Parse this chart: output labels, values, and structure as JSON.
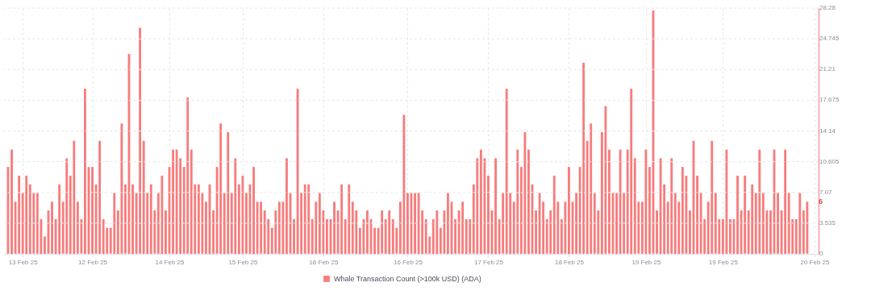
{
  "chart_data": {
    "type": "bar",
    "x": [
      "--02-11T00:00",
      "--02-11T01:00",
      "--02-11T02:00",
      "--02-11T03:00",
      "--02-11T04:00",
      "--02-11T05:00",
      "--02-11T06:00",
      "--02-11T07:00",
      "--02-11T08:00",
      "--02-11T09:00",
      "--02-11T10:00",
      "--02-11T11:00",
      "--02-11T12:00",
      "--02-11T13:00",
      "--02-11T14:00",
      "--02-11T15:00",
      "--02-11T16:00",
      "--02-11T17:00",
      "--02-11T18:00",
      "--02-11T19:00",
      "--02-11T20:00",
      "--02-11T21:00",
      "--02-11T22:00",
      "--02-11T23:00",
      "--02-12T00:00",
      "--02-12T01:00",
      "--02-12T02:00",
      "--02-12T03:00",
      "--02-12T04:00",
      "--02-12T05:00",
      "--02-12T06:00",
      "--02-12T07:00",
      "--02-12T08:00",
      "--02-12T09:00",
      "--02-12T10:00",
      "--02-12T11:00",
      "--02-12T12:00",
      "--02-12T13:00",
      "--02-12T14:00",
      "--02-12T15:00",
      "--02-12T16:00",
      "--02-12T17:00",
      "--02-12T18:00",
      "--02-12T19:00",
      "--02-12T20:00",
      "--02-12T21:00",
      "--02-12T22:00",
      "--02-12T23:00",
      "--02-13T00:00",
      "--02-13T01:00",
      "--02-13T02:00",
      "--02-13T03:00",
      "--02-13T04:00",
      "--02-13T05:00",
      "--02-13T06:00",
      "--02-13T07:00",
      "--02-13T08:00",
      "--02-13T09:00",
      "--02-13T10:00",
      "--02-13T11:00",
      "--02-13T12:00",
      "--02-13T13:00",
      "--02-13T14:00",
      "--02-13T15:00",
      "--02-13T16:00",
      "--02-13T17:00",
      "--02-13T18:00",
      "--02-13T19:00",
      "--02-13T20:00",
      "--02-13T21:00",
      "--02-13T22:00",
      "--02-13T23:00",
      "--02-14T00:00",
      "--02-14T01:00",
      "--02-14T02:00",
      "--02-14T03:00",
      "--02-14T04:00",
      "--02-14T05:00",
      "--02-14T06:00",
      "--02-14T07:00",
      "--02-14T08:00",
      "--02-14T09:00",
      "--02-14T10:00",
      "--02-14T11:00",
      "--02-14T12:00",
      "--02-14T13:00",
      "--02-14T14:00",
      "--02-14T15:00",
      "--02-14T16:00",
      "--02-14T17:00",
      "--02-14T18:00",
      "--02-14T19:00",
      "--02-14T20:00",
      "--02-14T21:00",
      "--02-14T22:00",
      "--02-14T23:00",
      "--02-15T00:00",
      "--02-15T01:00",
      "--02-15T02:00",
      "--02-15T03:00",
      "--02-15T04:00",
      "--02-15T05:00",
      "--02-15T06:00",
      "--02-15T07:00",
      "--02-15T08:00",
      "--02-15T09:00",
      "--02-15T10:00",
      "--02-15T11:00",
      "--02-15T12:00",
      "--02-15T13:00",
      "--02-15T14:00",
      "--02-15T15:00",
      "--02-15T16:00",
      "--02-15T17:00",
      "--02-15T18:00",
      "--02-15T19:00",
      "--02-15T20:00",
      "--02-15T21:00",
      "--02-15T22:00",
      "--02-15T23:00",
      "--02-16T00:00",
      "--02-16T01:00",
      "--02-16T02:00",
      "--02-16T03:00",
      "--02-16T04:00",
      "--02-16T05:00",
      "--02-16T06:00",
      "--02-16T07:00",
      "--02-16T08:00",
      "--02-16T09:00",
      "--02-16T10:00",
      "--02-16T11:00",
      "--02-16T12:00",
      "--02-16T13:00",
      "--02-16T14:00",
      "--02-16T15:00",
      "--02-16T16:00",
      "--02-16T17:00",
      "--02-16T18:00",
      "--02-16T19:00",
      "--02-16T20:00",
      "--02-16T21:00",
      "--02-16T22:00",
      "--02-16T23:00",
      "--02-17T00:00",
      "--02-17T01:00",
      "--02-17T02:00",
      "--02-17T03:00",
      "--02-17T04:00",
      "--02-17T05:00",
      "--02-17T06:00",
      "--02-17T07:00",
      "--02-17T08:00",
      "--02-17T09:00",
      "--02-17T10:00",
      "--02-17T11:00",
      "--02-17T12:00",
      "--02-17T13:00",
      "--02-17T14:00",
      "--02-17T15:00",
      "--02-17T16:00",
      "--02-17T17:00",
      "--02-17T18:00",
      "--02-17T19:00",
      "--02-17T20:00",
      "--02-17T21:00",
      "--02-17T22:00",
      "--02-17T23:00",
      "--02-18T00:00",
      "--02-18T01:00",
      "--02-18T02:00",
      "--02-18T03:00",
      "--02-18T04:00",
      "--02-18T05:00",
      "--02-18T06:00",
      "--02-18T07:00",
      "--02-18T08:00",
      "--02-18T09:00",
      "--02-18T10:00",
      "--02-18T11:00",
      "--02-18T12:00",
      "--02-18T13:00",
      "--02-18T14:00",
      "--02-18T15:00",
      "--02-18T16:00",
      "--02-18T17:00",
      "--02-18T18:00",
      "--02-18T19:00",
      "--02-18T20:00",
      "--02-18T21:00",
      "--02-18T22:00",
      "--02-18T23:00",
      "--02-19T00:00",
      "--02-19T01:00",
      "--02-19T02:00",
      "--02-19T03:00",
      "--02-19T04:00",
      "--02-19T05:00",
      "--02-19T06:00",
      "--02-19T07:00",
      "--02-19T08:00",
      "--02-19T09:00",
      "--02-19T10:00",
      "--02-19T11:00",
      "--02-19T12:00",
      "--02-19T13:00",
      "--02-19T14:00",
      "--02-19T15:00",
      "--02-19T16:00",
      "--02-19T17:00",
      "--02-19T18:00",
      "--02-19T19:00",
      "--02-19T20:00",
      "--02-19T21:00",
      "--02-19T22:00",
      "--02-19T23:00",
      "--02-20T00:00",
      "--02-20T01:00",
      "--02-20T02:00"
    ],
    "series": [
      {
        "name": "Whale Transaction Count (>100k USD) (ADA)",
        "color": "#f77c7c",
        "values": [
          10,
          12,
          6,
          9,
          7,
          9,
          8,
          7,
          7,
          4,
          2,
          5,
          6,
          4,
          8,
          6,
          11,
          9,
          13,
          6,
          4,
          19,
          10,
          10,
          8,
          13,
          4,
          3,
          3,
          7,
          5,
          15,
          8,
          23,
          8,
          7,
          26,
          13,
          7,
          8,
          5,
          7,
          9,
          5,
          10,
          12,
          12,
          11,
          10,
          18,
          12,
          8,
          8,
          7,
          6,
          8,
          5,
          10,
          15,
          7,
          14,
          7,
          11,
          8,
          9,
          7,
          8,
          10,
          6,
          6,
          5,
          4,
          3,
          5,
          6,
          6,
          11,
          7,
          4,
          19,
          7,
          8,
          8,
          4,
          6,
          7,
          5,
          4,
          4,
          6,
          5,
          8,
          4,
          8,
          6,
          5,
          3,
          4,
          5,
          4,
          3,
          3,
          5,
          4,
          5,
          4,
          3,
          6,
          16,
          7,
          7,
          7,
          7,
          5,
          4,
          2,
          4,
          5,
          3,
          5,
          7,
          6,
          4,
          5,
          6,
          4,
          4,
          8,
          11,
          12,
          11,
          9,
          5,
          11,
          4,
          7,
          19,
          7,
          6,
          12,
          10,
          14,
          12,
          8,
          5,
          7,
          6,
          4,
          5,
          9,
          6,
          4,
          6,
          10,
          6,
          7,
          10,
          22,
          13,
          15,
          7,
          5,
          14,
          17,
          12,
          7,
          7,
          12,
          7,
          12,
          19,
          11,
          6,
          6,
          12,
          10,
          28,
          5,
          11,
          8,
          6,
          11,
          7,
          6,
          10,
          9,
          5,
          13,
          9,
          7,
          4,
          6,
          13,
          7,
          4,
          4,
          12,
          4,
          4,
          9,
          5,
          9,
          5,
          8,
          7,
          12,
          7,
          5,
          5,
          12,
          7,
          5,
          12,
          7,
          4,
          4,
          7,
          5,
          6
        ]
      }
    ],
    "xlim": [
      "--02-11T00:00",
      "--02-20T04:00"
    ],
    "xticks": [
      {
        "value": "--02-11T04:00",
        "label": "13 Feb 25"
      },
      {
        "value": "--02-11T23:00",
        "label": "12 Feb 25"
      },
      {
        "value": "--02-12T20:00",
        "label": "14 Feb 25"
      },
      {
        "value": "--02-13T16:00",
        "label": "15 Feb 25"
      },
      {
        "value": "--02-14T14:00",
        "label": "16 Feb 25"
      },
      {
        "value": "--02-15T13:00",
        "label": "16 Feb 25"
      },
      {
        "value": "--02-16T11:00",
        "label": "17 Feb 25"
      },
      {
        "value": "--02-17T09:00",
        "label": "18 Feb 25"
      },
      {
        "value": "--02-18T06:00",
        "label": "19 Feb 25"
      },
      {
        "value": "--02-19T03:00",
        "label": "19 Feb 25"
      },
      {
        "value": "--02-20T04:00",
        "label": "20 Feb 25"
      }
    ],
    "ylim": [
      0,
      28.28
    ],
    "yticks": [
      0,
      3.535,
      7.07,
      10.605,
      14.14,
      17.675,
      21.21,
      24.745,
      28.28
    ],
    "annotations": [
      {
        "text": "6",
        "x": "--02-20T02:00",
        "y": 6
      }
    ],
    "grid": true,
    "legend": "bottom"
  }
}
